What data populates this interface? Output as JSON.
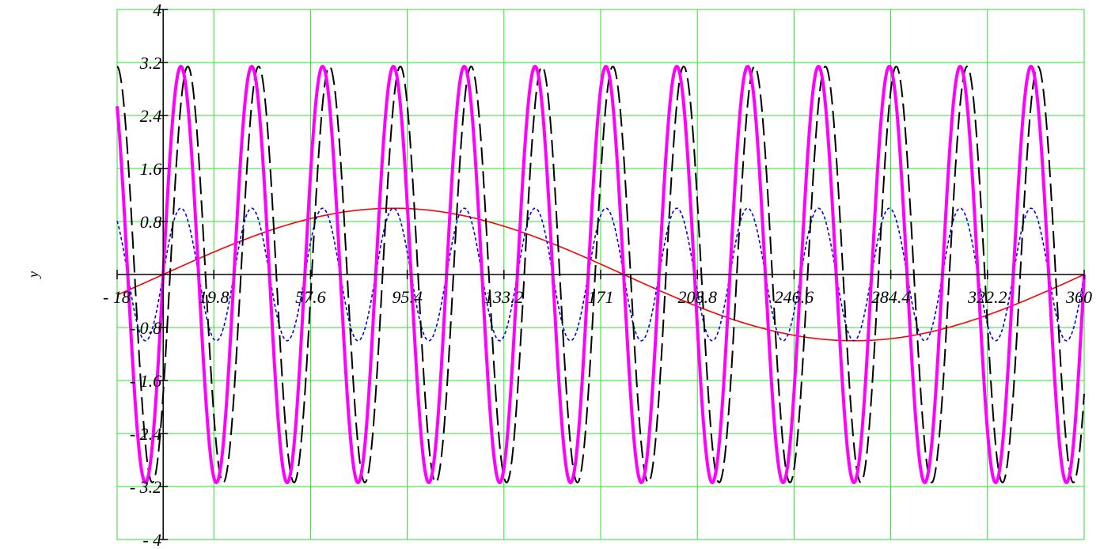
{
  "chart_data": {
    "type": "line",
    "xlabel": "",
    "ylabel": "y",
    "xlim": [
      -18,
      360
    ],
    "ylim": [
      -4,
      4
    ],
    "grid": true,
    "grid_color": "#33dd33",
    "axis_color": "#000000",
    "x_ticks": [
      -18,
      19.8,
      57.6,
      95.4,
      133.2,
      171,
      208.8,
      246.6,
      284.4,
      322.2,
      360
    ],
    "x_tick_labels": [
      "- 18",
      "19.8",
      "57.6",
      "95.4",
      "133.2",
      "171",
      "208.8",
      "246.6",
      "284.4",
      "322.2",
      "360"
    ],
    "y_ticks": [
      -4,
      -3.2,
      -2.4,
      -1.6,
      -0.8,
      0.8,
      1.6,
      2.4,
      3.2,
      4
    ],
    "y_tick_labels": [
      "- 4",
      "- 3.2",
      "- 2.4",
      "- 1.6",
      "- 0.8",
      "0.8",
      "1.6",
      "2.4",
      "3.2",
      "4"
    ],
    "series": [
      {
        "color": "#ff0000",
        "style": "solid",
        "stroke": "thin",
        "formula": "sin(x)",
        "amplitude": 1,
        "cycles_per_360": 1,
        "phase_deg": 0,
        "x": [
          -18,
          0,
          45,
          90,
          135,
          180,
          225,
          270,
          315,
          360
        ],
        "values": [
          -0.31,
          0,
          0.71,
          1,
          0.71,
          0,
          -0.71,
          -1,
          -0.71,
          0
        ]
      },
      {
        "color": "#0000ee",
        "style": "dotted",
        "stroke": "thin",
        "formula": "sin(13x)",
        "amplitude": 1,
        "cycles_per_360": 13,
        "phase_deg": 0,
        "x": [
          0,
          6.9,
          13.8,
          20.8,
          27.7
        ],
        "values": [
          0,
          1,
          0,
          -1,
          0
        ]
      },
      {
        "color": "#000000",
        "style": "dashed",
        "stroke": "medium",
        "formula": "3.14·sin(13x − 35°)",
        "amplitude": 3.14,
        "cycles_per_360": 13,
        "phase_deg": -35,
        "x": [
          2.7,
          9.6,
          16.5,
          23.5,
          30.4
        ],
        "values": [
          0,
          3.14,
          0,
          -3.14,
          0
        ]
      },
      {
        "color": "#ff00ff",
        "style": "solid",
        "stroke": "thick",
        "formula": "3.14·sin(13x)",
        "amplitude": 3.14,
        "cycles_per_360": 13,
        "phase_deg": 0,
        "x": [
          0,
          6.9,
          13.8,
          20.8,
          27.7
        ],
        "values": [
          0,
          3.14,
          0,
          -3.14,
          0
        ]
      }
    ]
  }
}
